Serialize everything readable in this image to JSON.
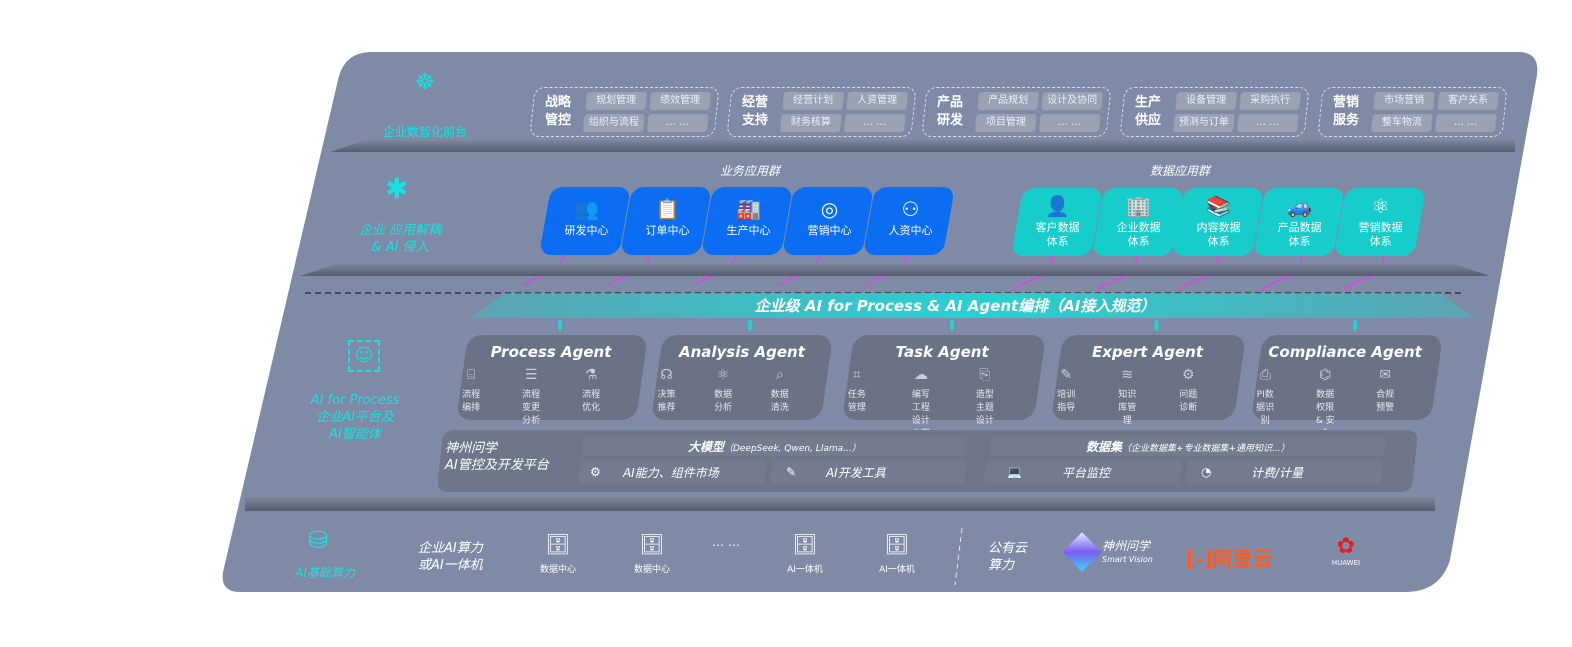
{
  "colors": {
    "panel": "#7f8ba6",
    "business_tile": "#0b6df2",
    "data_tile": "#17cdcb",
    "accent": "#19e0e0",
    "connector": "#e040e8",
    "agent_card": "#6b7285"
  },
  "layers": {
    "front": {
      "label": "企业数智化前台",
      "icon": "brain-icon"
    },
    "apps": {
      "label_line1": "企业 应用解耦",
      "label_line2": "& AI 侵入",
      "icon": "molecule-icon"
    },
    "ai": {
      "label_line1": "AI for Process",
      "label_line2": "企业AI平台及",
      "label_line3": "AI智能体",
      "icon": "face-scan-icon"
    },
    "compute": {
      "label": "AI基础算力",
      "icon": "database-icon"
    }
  },
  "domains": [
    {
      "title1": "战略",
      "title2": "管控",
      "chips": [
        "规划管理",
        "绩效管理",
        "组织与流程",
        "… …"
      ]
    },
    {
      "title1": "经营",
      "title2": "支持",
      "chips": [
        "经营计划",
        "人资管理",
        "财务核算",
        "… …"
      ]
    },
    {
      "title1": "产品",
      "title2": "研发",
      "chips": [
        "产品规划",
        "设计及协同",
        "项目管理",
        "… …"
      ]
    },
    {
      "title1": "生产",
      "title2": "供应",
      "chips": [
        "设备管理",
        "采购执行",
        "预测与订单",
        "… …"
      ]
    },
    {
      "title1": "营销",
      "title2": "服务",
      "chips": [
        "市场营销",
        "客户关系",
        "整车物流",
        "… …"
      ]
    }
  ],
  "business_apps": {
    "title": "业务应用群",
    "items": [
      {
        "label": "研发中心",
        "icon": "users-icon"
      },
      {
        "label": "订单中心",
        "icon": "clipboard-icon"
      },
      {
        "label": "生产中心",
        "icon": "factory-icon"
      },
      {
        "label": "营销中心",
        "icon": "target-icon"
      },
      {
        "label": "人资中心",
        "icon": "person-growth-icon"
      }
    ]
  },
  "data_apps": {
    "title": "数据应用群",
    "items": [
      {
        "line1": "客户数据",
        "line2": "体系",
        "icon": "user-icon"
      },
      {
        "line1": "企业数据",
        "line2": "体系",
        "icon": "building-icon"
      },
      {
        "line1": "内容数据",
        "line2": "体系",
        "icon": "books-icon"
      },
      {
        "line1": "产品数据",
        "line2": "体系",
        "icon": "car-icon"
      },
      {
        "line1": "营销数据",
        "line2": "体系",
        "icon": "atom-icon"
      }
    ]
  },
  "banner": "企业级 AI for Process & AI Agent编排（AI接入规范）",
  "agents": [
    {
      "title": "Process Agent",
      "items": [
        "流程编排",
        "流程变更分析",
        "流程优化"
      ]
    },
    {
      "title": "Analysis Agent",
      "items": [
        "决策推荐",
        "数据分析",
        "数据清洗"
      ]
    },
    {
      "title": "Task Agent",
      "items": [
        "任务管理",
        "编写工程设计方案",
        "造型主题设计"
      ]
    },
    {
      "title": "Expert Agent",
      "items": [
        "培训指导",
        "知识库管理",
        "问题诊断"
      ]
    },
    {
      "title": "Compliance Agent",
      "items": [
        "PI数据识别",
        "数据权限 & 安全",
        "合规预警"
      ]
    }
  ],
  "platform": {
    "title_line1": "神州问学",
    "title_line2": "AI管控及开发平台",
    "model": "大模型",
    "model_note": "（DeepSeek, Qwen, Llama...）",
    "dataset": "数据集",
    "dataset_note": "（企业数据集+专业数据集+通用知识...）",
    "market": "AI能力、组件市场",
    "devtools": "AI开发工具",
    "monitor": "平台监控",
    "billing": "计费/计量"
  },
  "compute": {
    "private_line1": "企业AI算力",
    "private_line2": "或AI一体机",
    "servers": [
      "数据中心",
      "数据中心",
      "AI一体机",
      "AI一体机"
    ],
    "ellipsis": "… …",
    "public_line1": "公有云",
    "public_line2": "算力",
    "vendors": {
      "shenzhou": "神州问学",
      "shenzhou_en": "Smart Vision",
      "aliyun": "阿里云",
      "huawei": "HUAWEI"
    }
  }
}
